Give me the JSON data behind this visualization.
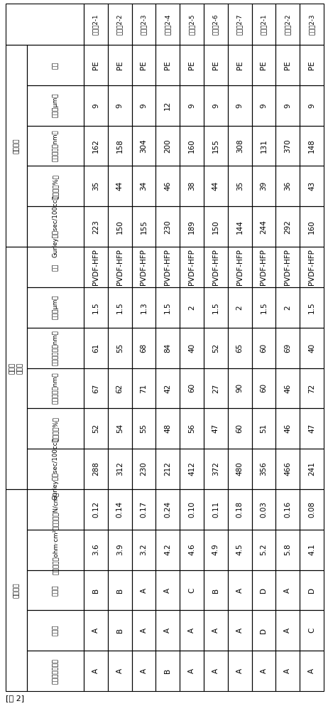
{
  "title": "[表 2]",
  "col_headers": [
    "実施例2-1",
    "実施例2-2",
    "実施例2-3",
    "実施例2-4",
    "実施例2-5",
    "実施例2-6",
    "実施例2-7",
    "比較例2-1",
    "比較例2-2",
    "比較例2-3"
  ],
  "groups": [
    {
      "group_label": "微多孔膜",
      "rows": [
        {
          "label": "材料",
          "values": [
            "PE",
            "PE",
            "PE",
            "PE",
            "PE",
            "PE",
            "PE",
            "PE",
            "PE",
            "PE"
          ]
        },
        {
          "label": "膜厚（μm）",
          "values": [
            "9",
            "9",
            "9",
            "12",
            "9",
            "9",
            "9",
            "9",
            "9",
            "9"
          ]
        },
        {
          "label": "原纤维径（nm）",
          "values": [
            "162",
            "158",
            "304",
            "200",
            "160",
            "155",
            "308",
            "131",
            "370",
            "148"
          ]
        },
        {
          "label": "孔隙率（%）",
          "values": [
            "35",
            "44",
            "34",
            "46",
            "38",
            "44",
            "35",
            "39",
            "36",
            "43"
          ]
        },
        {
          "label": "Gurley值（sec/100cc）",
          "values": [
            "223",
            "150",
            "155",
            "230",
            "189",
            "150",
            "144",
            "244",
            "292",
            "160"
          ]
        }
      ]
    },
    {
      "group_label": "粘接性\n多孔层",
      "rows": [
        {
          "label": "材料",
          "values": [
            "PVDF-HFP",
            "PVDF-HFP",
            "PVDF-HFP",
            "PVDF-HFP",
            "PVDF-HFP",
            "PVDF-HFP",
            "PVDF-HFP",
            "PVDF-HFP",
            "PVDF-HFP",
            "PVDF-HFP"
          ]
        },
        {
          "label": "膜厚（μm）",
          "values": [
            "1.5",
            "1.5",
            "1.3",
            "1.5",
            "2",
            "1.5",
            "2",
            "1.5",
            "2",
            "1.5"
          ]
        },
        {
          "label": "原纤维孔径（nm）",
          "values": [
            "61",
            "55",
            "68",
            "84",
            "40",
            "52",
            "65",
            "60",
            "69",
            "40"
          ]
        },
        {
          "label": "平均孔径（nm）",
          "values": [
            "67",
            "62",
            "71",
            "42",
            "60",
            "27",
            "90",
            "60",
            "46",
            "72"
          ]
        },
        {
          "label": "孔隙率（%）",
          "values": [
            "52",
            "54",
            "55",
            "48",
            "56",
            "47",
            "60",
            "51",
            "46",
            "47"
          ]
        },
        {
          "label": "Gurley值（sec/100cc）",
          "values": [
            "288",
            "312",
            "230",
            "212",
            "412",
            "372",
            "480",
            "356",
            "466",
            "241"
          ]
        }
      ]
    },
    {
      "group_label": "隔膜物性",
      "rows": [
        {
          "label": "剥离力（N/cm）",
          "values": [
            "0.12",
            "0.14",
            "0.17",
            "0.24",
            "0.10",
            "0.11",
            "0.18",
            "0.03",
            "0.16",
            "0.08"
          ]
        },
        {
          "label": "薄膜电阻（ohm·cm²）",
          "values": [
            "3.6",
            "3.9",
            "3.2",
            "4.2",
            "4.6",
            "4.9",
            "4.5",
            "5.2",
            "5.8",
            "4.1"
          ]
        },
        {
          "label": "操作性",
          "values": [
            "B",
            "B",
            "A",
            "A",
            "C",
            "B",
            "A",
            "D",
            "A",
            "D"
          ]
        },
        {
          "label": "分切性",
          "values": [
            "A",
            "B",
            "A",
            "A",
            "A",
            "A",
            "A",
            "D",
            "A",
            "C"
          ]
        },
        {
          "label": "与电极的粘接性",
          "values": [
            "A",
            "A",
            "A",
            "B",
            "A",
            "A",
            "A",
            "A",
            "A",
            "A"
          ]
        }
      ]
    }
  ],
  "bg_color": "white",
  "line_color": "black",
  "text_color": "black",
  "line_width": 0.8
}
